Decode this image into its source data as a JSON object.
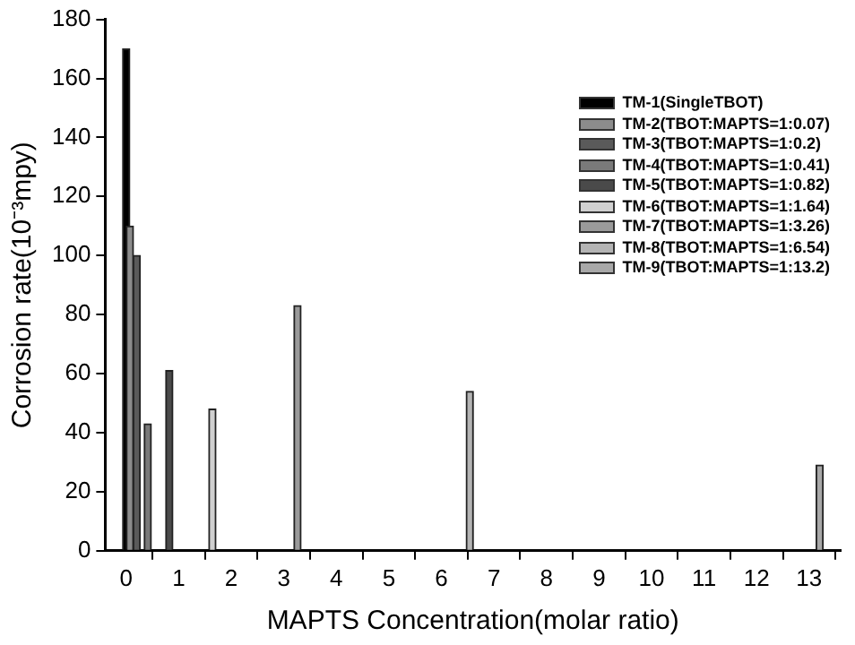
{
  "chart_data": {
    "type": "bar",
    "xlabel": "MAPTS Concentration(molar ratio)",
    "ylabel": "Corrosion rate(10⁻³mpy)",
    "xlim": [
      -0.4,
      13.6
    ],
    "xticks": [
      0,
      1,
      2,
      3,
      4,
      5,
      6,
      7,
      8,
      9,
      10,
      11,
      12,
      13
    ],
    "ylim": [
      0,
      180
    ],
    "yticks": [
      0,
      20,
      40,
      60,
      80,
      100,
      120,
      140,
      160,
      180
    ],
    "grid": false,
    "legend": "top right",
    "series": [
      {
        "name": "TM-1(SingleTBOT)",
        "color": "#000000",
        "x": [
          0
        ],
        "values": [
          170
        ]
      },
      {
        "name": "TM-2(TBOT:MAPTS=1:0.07)",
        "color": "#8c8c8c",
        "x": [
          0.07
        ],
        "values": [
          110
        ]
      },
      {
        "name": "TM-3(TBOT:MAPTS=1:0.2)",
        "color": "#5a5a5a",
        "x": [
          0.2
        ],
        "values": [
          100
        ]
      },
      {
        "name": "TM-4(TBOT:MAPTS=1:0.41)",
        "color": "#7a7a7a",
        "x": [
          0.41
        ],
        "values": [
          43
        ]
      },
      {
        "name": "TM-5(TBOT:MAPTS=1:0.82)",
        "color": "#4a4a4a",
        "x": [
          0.82
        ],
        "values": [
          61
        ]
      },
      {
        "name": "TM-6(TBOT:MAPTS=1:1.64)",
        "color": "#d0d0d0",
        "x": [
          1.64
        ],
        "values": [
          48
        ]
      },
      {
        "name": "TM-7(TBOT:MAPTS=1:3.26)",
        "color": "#9a9a9a",
        "x": [
          3.26
        ],
        "values": [
          83
        ]
      },
      {
        "name": "TM-8(TBOT:MAPTS=1:6.54)",
        "color": "#b4b4b4",
        "x": [
          6.54
        ],
        "values": [
          54
        ]
      },
      {
        "name": "TM-9(TBOT:MAPTS=1:13.2)",
        "color": "#a8a8a8",
        "x": [
          13.2
        ],
        "values": [
          29
        ]
      }
    ]
  }
}
